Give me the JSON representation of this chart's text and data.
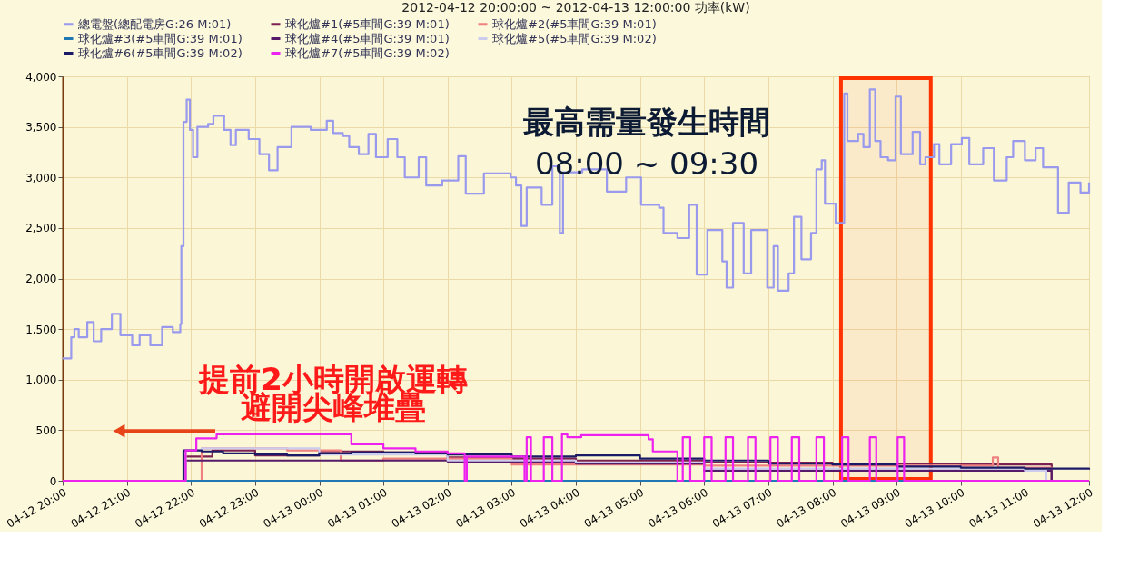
{
  "chart_data": {
    "type": "step",
    "title": "2012-04-12 20:00:00 ~ 2012-04-13 12:00:00 功率(kW)",
    "xlim": [
      "2012-04-12T20:00",
      "2012-04-13T12:00"
    ],
    "xticks": [
      {
        "value": "2012-04-12T20:00",
        "label": "04-12 20:00"
      },
      {
        "value": "2012-04-12T21:00",
        "label": "04-12 21:00"
      },
      {
        "value": "2012-04-12T22:00",
        "label": "04-12 22:00"
      },
      {
        "value": "2012-04-12T23:00",
        "label": "04-12 23:00"
      },
      {
        "value": "2012-04-13T00:00",
        "label": "04-13 00:00"
      },
      {
        "value": "2012-04-13T01:00",
        "label": "04-13 01:00"
      },
      {
        "value": "2012-04-13T02:00",
        "label": "04-13 02:00"
      },
      {
        "value": "2012-04-13T03:00",
        "label": "04-13 03:00"
      },
      {
        "value": "2012-04-13T04:00",
        "label": "04-13 04:00"
      },
      {
        "value": "2012-04-13T05:00",
        "label": "04-13 05:00"
      },
      {
        "value": "2012-04-13T06:00",
        "label": "04-13 06:00"
      },
      {
        "value": "2012-04-13T07:00",
        "label": "04-13 07:00"
      },
      {
        "value": "2012-04-13T08:00",
        "label": "04-13 08:00"
      },
      {
        "value": "2012-04-13T09:00",
        "label": "04-13 09:00"
      },
      {
        "value": "2012-04-13T10:00",
        "label": "04-13 10:00"
      },
      {
        "value": "2012-04-13T11:00",
        "label": "04-13 11:00"
      },
      {
        "value": "2012-04-13T12:00",
        "label": "04-13 12:00"
      }
    ],
    "ylim": [
      0,
      4000
    ],
    "yticks": [
      0,
      500,
      {
        "value": 1000,
        "label": "1,000"
      },
      {
        "value": 1500,
        "label": "1,500"
      },
      {
        "value": 2000,
        "label": "2,000"
      },
      {
        "value": 2500,
        "label": "2,500"
      },
      {
        "value": 3000,
        "label": "3,000"
      },
      {
        "value": 3500,
        "label": "3,500"
      },
      {
        "value": 4000,
        "label": "4,000"
      }
    ],
    "grid": true,
    "legend": "top",
    "series": [
      {
        "name": "總電盤(總配電房G:26 M:01)",
        "color": "#9999ee",
        "x": [
          "2012-04-12T20:00",
          "2012-04-12T20:08",
          "2012-04-12T20:11",
          "2012-04-12T20:15",
          "2012-04-12T20:23",
          "2012-04-12T20:29",
          "2012-04-12T20:36",
          "2012-04-12T20:44",
          "2012-04-12T20:46",
          "2012-04-12T20:54",
          "2012-04-12T21:05",
          "2012-04-12T21:12",
          "2012-04-12T21:22",
          "2012-04-12T21:33",
          "2012-04-12T21:43",
          "2012-04-12T21:50",
          "2012-04-12T21:51",
          "2012-04-12T21:53",
          "2012-04-12T21:56",
          "2012-04-12T21:59",
          "2012-04-12T22:02",
          "2012-04-12T22:06",
          "2012-04-12T22:16",
          "2012-04-12T22:21",
          "2012-04-12T22:31",
          "2012-04-12T22:37",
          "2012-04-12T22:42",
          "2012-04-12T22:54",
          "2012-04-12T23:04",
          "2012-04-12T23:13",
          "2012-04-12T23:21",
          "2012-04-12T23:34",
          "2012-04-12T23:52",
          "2012-04-13T00:07",
          "2012-04-13T00:13",
          "2012-04-13T00:22",
          "2012-04-13T00:28",
          "2012-04-13T00:37",
          "2012-04-13T00:46",
          "2012-04-13T00:53",
          "2012-04-13T01:04",
          "2012-04-13T01:13",
          "2012-04-13T01:20",
          "2012-04-13T01:33",
          "2012-04-13T01:40",
          "2012-04-13T01:55",
          "2012-04-13T02:10",
          "2012-04-13T02:17",
          "2012-04-13T02:34",
          "2012-04-13T02:49",
          "2012-04-13T02:59",
          "2012-04-13T03:04",
          "2012-04-13T03:09",
          "2012-04-13T03:14",
          "2012-04-13T03:28",
          "2012-04-13T03:38",
          "2012-04-13T03:45",
          "2012-04-13T03:48",
          "2012-04-13T04:06",
          "2012-04-13T04:29",
          "2012-04-13T04:47",
          "2012-04-13T05:01",
          "2012-04-13T05:18",
          "2012-04-13T05:22",
          "2012-04-13T05:35",
          "2012-04-13T05:46",
          "2012-04-13T05:53",
          "2012-04-13T06:03",
          "2012-04-13T06:17",
          "2012-04-13T06:21",
          "2012-04-13T06:27",
          "2012-04-13T06:37",
          "2012-04-13T06:44",
          "2012-04-13T06:59",
          "2012-04-13T07:05",
          "2012-04-13T07:09",
          "2012-04-13T07:19",
          "2012-04-13T07:24",
          "2012-04-13T07:31",
          "2012-04-13T07:40",
          "2012-04-13T07:45",
          "2012-04-13T07:50",
          "2012-04-13T07:53",
          "2012-04-13T08:03",
          "2012-04-13T08:11",
          "2012-04-13T08:14",
          "2012-04-13T08:24",
          "2012-04-13T08:29",
          "2012-04-13T08:35",
          "2012-04-13T08:40",
          "2012-04-13T08:45",
          "2012-04-13T08:52",
          "2012-04-13T08:59",
          "2012-04-13T09:04",
          "2012-04-13T09:15",
          "2012-04-13T09:22",
          "2012-04-13T09:27",
          "2012-04-13T09:35",
          "2012-04-13T09:40",
          "2012-04-13T09:51",
          "2012-04-13T10:01",
          "2012-04-13T10:08",
          "2012-04-13T10:21",
          "2012-04-13T10:31",
          "2012-04-13T10:43",
          "2012-04-13T10:49",
          "2012-04-13T11:00",
          "2012-04-13T11:10",
          "2012-04-13T11:17",
          "2012-04-13T11:31",
          "2012-04-13T11:41",
          "2012-04-13T11:52",
          "2012-04-13T12:00"
        ],
        "values": [
          1210,
          1420,
          1500,
          1420,
          1570,
          1380,
          1500,
          1500,
          1650,
          1440,
          1340,
          1440,
          1340,
          1520,
          1470,
          1550,
          2320,
          3550,
          3770,
          3470,
          3200,
          3500,
          3530,
          3610,
          3470,
          3320,
          3470,
          3380,
          3230,
          3070,
          3300,
          3500,
          3470,
          3560,
          3440,
          3410,
          3300,
          3230,
          3430,
          3200,
          3380,
          3200,
          3000,
          3200,
          2920,
          2970,
          3210,
          2840,
          3040,
          3040,
          3000,
          2920,
          2520,
          2900,
          2730,
          3110,
          2450,
          3050,
          3080,
          2860,
          3000,
          2730,
          2700,
          2450,
          2400,
          2730,
          2040,
          2480,
          2170,
          1910,
          2550,
          2050,
          2480,
          1910,
          2320,
          1880,
          2050,
          2610,
          2190,
          2450,
          3080,
          3170,
          2740,
          2550,
          3830,
          3360,
          3430,
          3300,
          3870,
          3360,
          3200,
          3170,
          3800,
          3230,
          3450,
          3130,
          3200,
          3330,
          3130,
          3330,
          3390,
          3130,
          3290,
          2970,
          3200,
          3360,
          3170,
          3290,
          3100,
          2650,
          2950,
          2850,
          2950
        ]
      },
      {
        "name": "球化爐#1(#5車間G:39 M:01)",
        "color": "#7b2050",
        "x": [
          "2012-04-12T20:00",
          "2012-04-12T21:54",
          "2012-04-12T22:20",
          "2012-04-12T23:00",
          "2012-04-13T00:00",
          "2012-04-13T01:00",
          "2012-04-13T02:00",
          "2012-04-13T03:00",
          "2012-04-13T04:00",
          "2012-04-13T06:00",
          "2012-04-13T08:00",
          "2012-04-13T10:00",
          "2012-04-13T11:25",
          "2012-04-13T12:00"
        ],
        "values": [
          0,
          240,
          300,
          250,
          290,
          280,
          230,
          220,
          200,
          180,
          170,
          160,
          0,
          0
        ]
      },
      {
        "name": "球化爐#2(#5車間G:39 M:01)",
        "color": "#f08080",
        "x": [
          "2012-04-12T20:00",
          "2012-04-12T22:10",
          "2012-04-12T23:30",
          "2012-04-13T00:20",
          "2012-04-13T01:00",
          "2012-04-13T03:00",
          "2012-04-13T06:00",
          "2012-04-13T10:30",
          "2012-04-13T10:35",
          "2012-04-13T11:25",
          "2012-04-13T12:00"
        ],
        "values": [
          0,
          320,
          300,
          200,
          220,
          160,
          150,
          230,
          130,
          0,
          0
        ]
      },
      {
        "name": "球化爐#3(#5車間G:39 M:01)",
        "color": "#1f77b4",
        "x": [
          "2012-04-12T20:00",
          "2012-04-13T12:00"
        ],
        "values": [
          0,
          0
        ]
      },
      {
        "name": "球化爐#4(#5車間G:39 M:01)",
        "color": "#551a6a",
        "x": [
          "2012-04-12T20:00",
          "2012-04-12T21:55",
          "2012-04-13T02:00",
          "2012-04-13T04:00",
          "2012-04-13T06:00",
          "2012-04-13T11:25",
          "2012-04-13T12:00"
        ],
        "values": [
          0,
          200,
          190,
          170,
          100,
          0,
          0
        ]
      },
      {
        "name": "球化爐#5(#5車間G:39 M:02)",
        "color": "#ccccee",
        "x": [
          "2012-04-12T20:00",
          "2012-04-12T21:55",
          "2012-04-12T22:10",
          "2012-04-13T00:00",
          "2012-04-13T02:00",
          "2012-04-13T04:00",
          "2012-04-13T06:00",
          "2012-04-13T11:00",
          "2012-04-13T11:20",
          "2012-04-13T12:00"
        ],
        "values": [
          0,
          300,
          320,
          260,
          200,
          180,
          120,
          100,
          0,
          0
        ]
      },
      {
        "name": "球化爐#6(#5車間G:39 M:02)",
        "color": "#1a1a66",
        "x": [
          "2012-04-12T20:00",
          "2012-04-12T21:53",
          "2012-04-12T22:10",
          "2012-04-12T22:30",
          "2012-04-12T23:00",
          "2012-04-12T23:30",
          "2012-04-13T00:00",
          "2012-04-13T00:30",
          "2012-04-13T01:00",
          "2012-04-13T01:30",
          "2012-04-13T02:00",
          "2012-04-13T03:00",
          "2012-04-13T04:00",
          "2012-04-13T05:00",
          "2012-04-13T06:00",
          "2012-04-13T07:00",
          "2012-04-13T08:00",
          "2012-04-13T09:00",
          "2012-04-13T10:00",
          "2012-04-13T11:00",
          "2012-04-13T12:00"
        ],
        "values": [
          0,
          300,
          290,
          270,
          260,
          250,
          270,
          280,
          280,
          270,
          260,
          240,
          250,
          220,
          200,
          170,
          160,
          140,
          130,
          120,
          110
        ]
      },
      {
        "name": "球化爐#7(#5車間G:39 M:02)",
        "color": "#ee22ee",
        "x": [
          "2012-04-12T20:00",
          "2012-04-12T21:55",
          "2012-04-12T22:05",
          "2012-04-12T22:24",
          "2012-04-12T23:49",
          "2012-04-13T00:30",
          "2012-04-13T01:00",
          "2012-04-13T01:30",
          "2012-04-13T02:00",
          "2012-04-13T02:16",
          "2012-04-13T02:18",
          "2012-04-13T03:12",
          "2012-04-13T03:14",
          "2012-04-13T03:18",
          "2012-04-13T03:30",
          "2012-04-13T03:38",
          "2012-04-13T03:47",
          "2012-04-13T03:52",
          "2012-04-13T04:05",
          "2012-04-13T05:08",
          "2012-04-13T05:12",
          "2012-04-13T05:35",
          "2012-04-13T05:40",
          "2012-04-13T05:47",
          "2012-04-13T06:00",
          "2012-04-13T06:07",
          "2012-04-13T06:20",
          "2012-04-13T06:27",
          "2012-04-13T06:41",
          "2012-04-13T06:48",
          "2012-04-13T07:02",
          "2012-04-13T07:09",
          "2012-04-13T07:22",
          "2012-04-13T07:29",
          "2012-04-13T07:45",
          "2012-04-13T07:52",
          "2012-04-13T08:09",
          "2012-04-13T08:15",
          "2012-04-13T08:35",
          "2012-04-13T08:41",
          "2012-04-13T09:01",
          "2012-04-13T09:07",
          "2012-04-13T12:00"
        ],
        "values": [
          0,
          300,
          420,
          460,
          460,
          360,
          320,
          290,
          270,
          0,
          240,
          0,
          430,
          0,
          430,
          0,
          460,
          430,
          450,
          410,
          290,
          0,
          430,
          0,
          430,
          0,
          430,
          0,
          430,
          0,
          430,
          0,
          430,
          0,
          430,
          0,
          430,
          0,
          430,
          0,
          430,
          0,
          0
        ]
      }
    ],
    "bands": [
      {
        "axis": "x",
        "from": "2012-04-13T08:08",
        "to": "2012-04-13T09:32",
        "color": "#ff3300"
      }
    ],
    "annotations": [
      "最高需量發生時間",
      "08:00 ~ 09:30",
      "提前2小時開啟運轉",
      "避開尖峰堆疊"
    ]
  }
}
